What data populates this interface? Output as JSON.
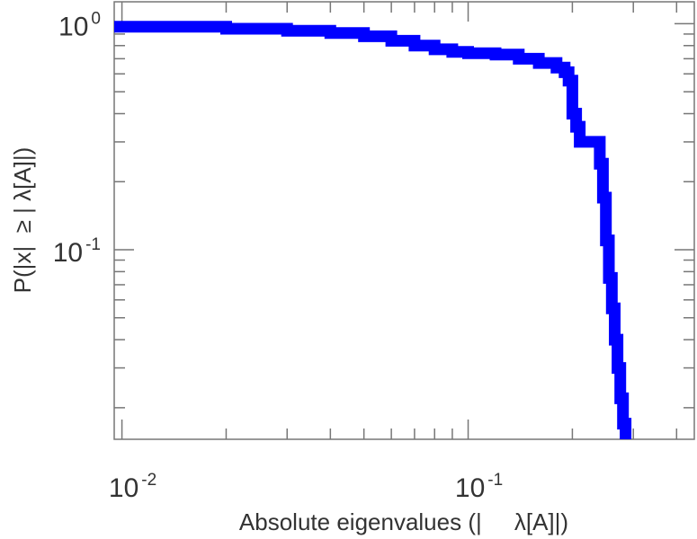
{
  "chart_data": {
    "type": "line",
    "xlabel": "Absolute eigenvalues (|     λ[A]|)",
    "ylabel": "P(|x|  ≥ | λ[A]|)",
    "x_scale": "log",
    "y_scale": "log",
    "xlim": [
      0.0095,
      0.45
    ],
    "ylim": [
      0.0145,
      1.25
    ],
    "x_ticks": [
      {
        "value": 0.01,
        "base": "10",
        "exp": "-2"
      },
      {
        "value": 0.1,
        "base": "10",
        "exp": "-1"
      }
    ],
    "y_ticks": [
      {
        "value": 1,
        "base": "10",
        "exp": "0"
      },
      {
        "value": 0.1,
        "base": "10",
        "exp": "-1"
      }
    ],
    "grid": false,
    "series": [
      {
        "color": "#0000ff",
        "x": [
          0.0095,
          0.02,
          0.03,
          0.04,
          0.05,
          0.06,
          0.07,
          0.08,
          0.09,
          0.1,
          0.12,
          0.14,
          0.16,
          0.18,
          0.19,
          0.195,
          0.2,
          0.205,
          0.21,
          0.235,
          0.24,
          0.245,
          0.25,
          0.255,
          0.26,
          0.265,
          0.27,
          0.275,
          0.28,
          0.285
        ],
        "y": [
          0.97,
          0.95,
          0.93,
          0.91,
          0.88,
          0.84,
          0.8,
          0.77,
          0.75,
          0.74,
          0.73,
          0.7,
          0.67,
          0.64,
          0.61,
          0.56,
          0.4,
          0.35,
          0.3,
          0.3,
          0.24,
          0.17,
          0.11,
          0.075,
          0.055,
          0.04,
          0.03,
          0.022,
          0.017,
          0.0145
        ]
      }
    ]
  }
}
